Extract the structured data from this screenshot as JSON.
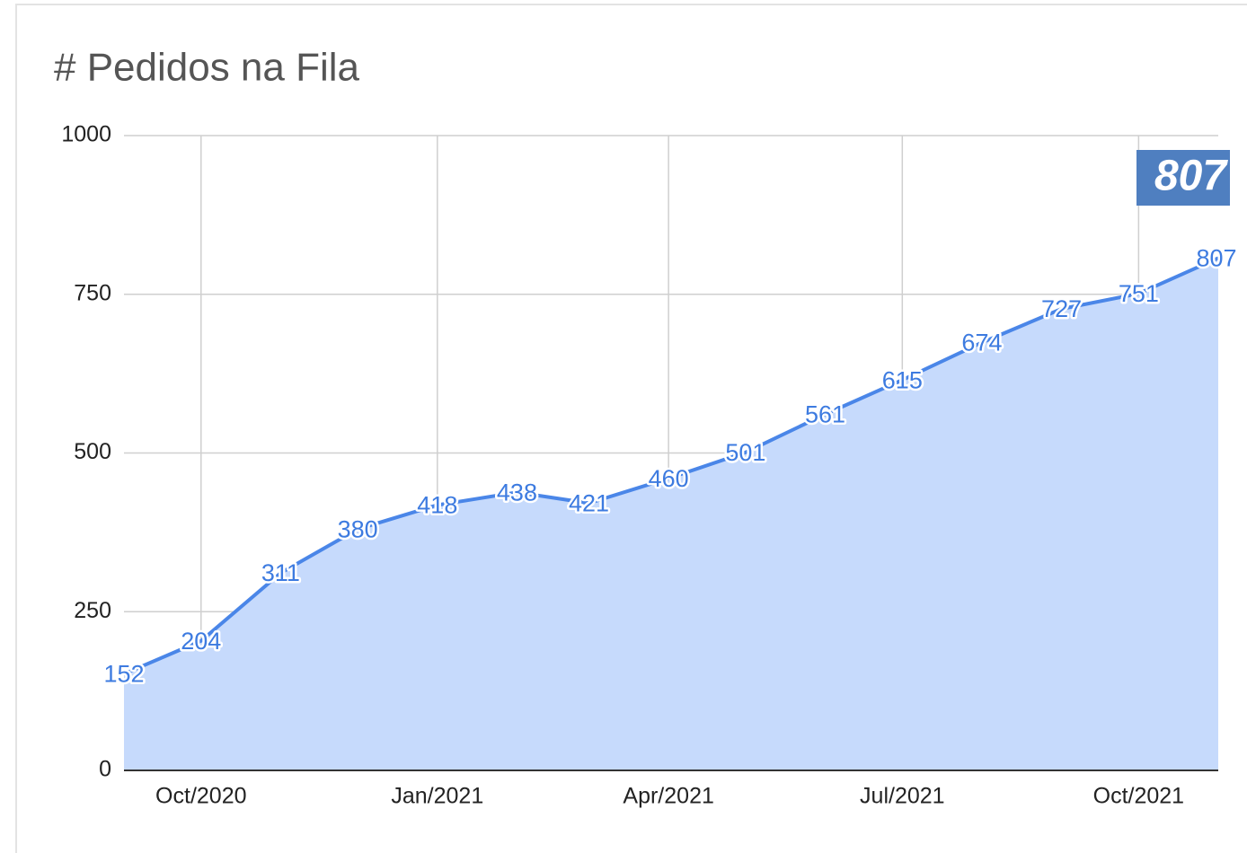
{
  "chart_data": {
    "type": "area",
    "title": "# Pedidos na Fila",
    "x": [
      "2020-09",
      "2020-10",
      "2020-11",
      "2020-12",
      "2021-01",
      "2021-02",
      "2021-03",
      "2021-04",
      "2021-05",
      "2021-06",
      "2021-07",
      "2021-08",
      "2021-09",
      "2021-10",
      "2021-11"
    ],
    "values": [
      152,
      204,
      311,
      380,
      418,
      438,
      421,
      460,
      501,
      561,
      615,
      674,
      727,
      751,
      807
    ],
    "color": "#4a86e8",
    "fill": "#c6dafc",
    "xlim": [
      "2020-09",
      "2021-11"
    ],
    "xticks": [
      {
        "value": "2020-10",
        "label": "Oct/2020"
      },
      {
        "value": "2021-01",
        "label": "Jan/2021"
      },
      {
        "value": "2021-04",
        "label": "Apr/2021"
      },
      {
        "value": "2021-07",
        "label": "Jul/2021"
      },
      {
        "value": "2021-10",
        "label": "Oct/2021"
      }
    ],
    "ylim": [
      0,
      1000
    ],
    "yticks": [
      0,
      250,
      500,
      750,
      1000
    ],
    "grid": true,
    "annotation": "807"
  }
}
